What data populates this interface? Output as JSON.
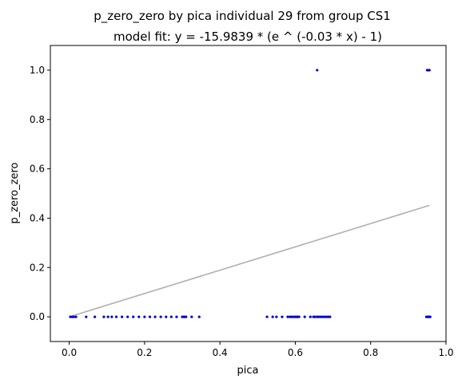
{
  "chart_data": {
    "type": "scatter",
    "title": "p_zero_zero by pica individual 29 from group CS1",
    "subtitle": "model fit: y = -15.9839 * (e ^ (-0.03 * x) - 1)",
    "xlabel": "pica",
    "ylabel": "p_zero_zero",
    "xlim": [
      -0.05,
      1.0
    ],
    "ylim": [
      -0.1,
      1.1
    ],
    "xticks": [
      "0.0",
      "0.2",
      "0.4",
      "0.6",
      "0.8",
      "1.0"
    ],
    "xtick_values": [
      0.0,
      0.2,
      0.4,
      0.6,
      0.8,
      1.0
    ],
    "yticks": [
      "0.0",
      "0.2",
      "0.4",
      "0.6",
      "0.8",
      "1.0"
    ],
    "ytick_values": [
      0.0,
      0.2,
      0.4,
      0.6,
      0.8,
      1.0
    ],
    "grid": false,
    "colors": {
      "points": "#0000cc",
      "fit_line": "#b0b0b0"
    },
    "series": [
      {
        "kind": "points",
        "x": [
          0.003,
          0.008,
          0.012,
          0.018,
          0.045,
          0.068,
          0.092,
          0.103,
          0.113,
          0.125,
          0.14,
          0.155,
          0.17,
          0.185,
          0.2,
          0.214,
          0.228,
          0.243,
          0.257,
          0.271,
          0.285,
          0.3,
          0.303,
          0.306,
          0.31,
          0.325,
          0.345,
          0.525,
          0.54,
          0.55,
          0.565,
          0.58,
          0.586,
          0.59,
          0.595,
          0.6,
          0.603,
          0.606,
          0.61,
          0.625,
          0.64,
          0.648,
          0.652,
          0.658,
          0.662,
          0.667,
          0.672,
          0.677,
          0.682,
          0.687,
          0.692,
          0.948,
          0.95,
          0.952,
          0.954,
          0.956,
          0.958,
          0.658,
          0.95,
          0.952,
          0.954,
          0.956
        ],
        "y": [
          0,
          0,
          0,
          0,
          0,
          0,
          0,
          0,
          0,
          0,
          0,
          0,
          0,
          0,
          0,
          0,
          0,
          0,
          0,
          0,
          0,
          0,
          0,
          0,
          0,
          0,
          0,
          0,
          0,
          0,
          0,
          0,
          0,
          0,
          0,
          0,
          0,
          0,
          0,
          0,
          0,
          0,
          0,
          0,
          0,
          0,
          0,
          0,
          0,
          0,
          0,
          0,
          0,
          0,
          0,
          0,
          0,
          1,
          1,
          1,
          1,
          1
        ]
      },
      {
        "kind": "fit_line",
        "x": [
          0.0,
          0.956
        ],
        "y": [
          0.0,
          0.452
        ]
      }
    ]
  }
}
